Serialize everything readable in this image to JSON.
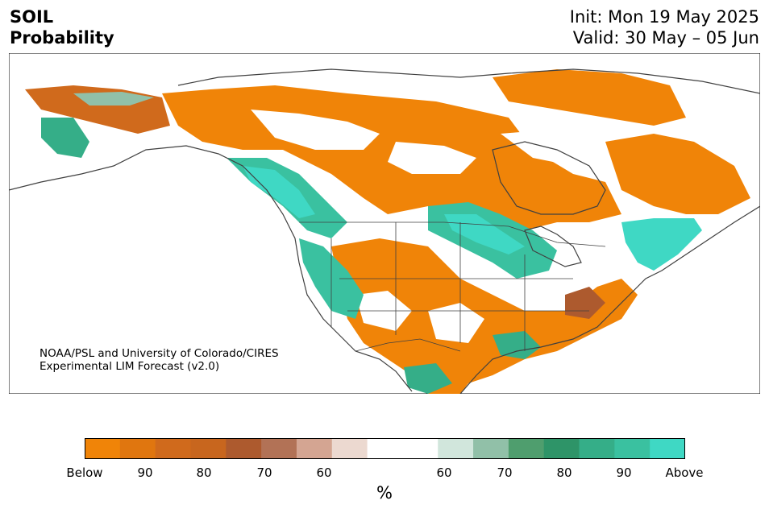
{
  "title": {
    "left_line1": "SOIL",
    "left_line2": "Probability",
    "right_line1": "Init: Mon 19 May 2025",
    "right_line2": "Valid: 30 May – 05 Jun"
  },
  "credit": {
    "line1": "NOAA/PSL and University of Colorado/CIRES",
    "line2": "Experimental LIM Forecast (v2.0)"
  },
  "colorbar": {
    "colors": [
      "#f08408",
      "#e0760f",
      "#d06a1c",
      "#c8661e",
      "#ad5a2e",
      "#b27256",
      "#d4a592",
      "#ecd9d0",
      "#ffffff",
      "#ffffff",
      "#d1e6dc",
      "#91c0a8",
      "#4f9e6e",
      "#2e9468",
      "#35ae88",
      "#3ac1a0",
      "#3fd8c4"
    ],
    "tick_labels": [
      "Below",
      "90",
      "80",
      "70",
      "60",
      "60",
      "70",
      "80",
      "90",
      "Above"
    ],
    "unit": "%"
  },
  "map": {
    "below_color": "#f08408",
    "above_color": "#3fd8c4",
    "coast_color": "#404040"
  }
}
